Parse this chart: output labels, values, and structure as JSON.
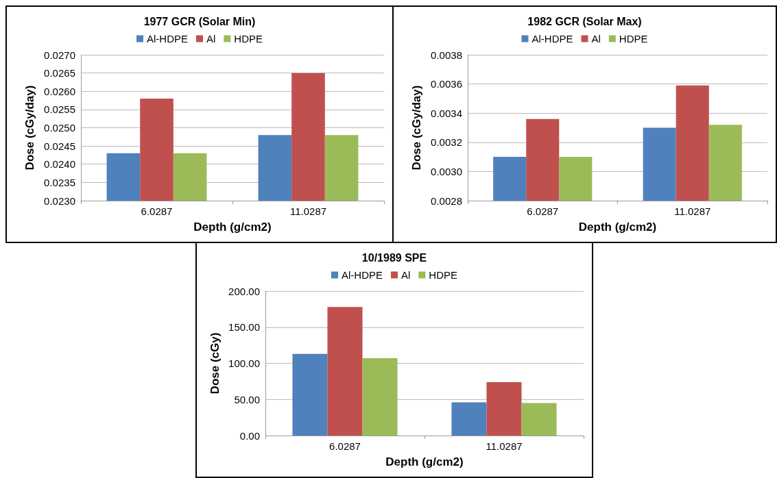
{
  "chart_data": [
    {
      "type": "bar",
      "title": "1977 GCR (Solar Min)",
      "xlabel": "Depth (g/cm2)",
      "ylabel": "Dose (cGy/day)",
      "categories": [
        "6.0287",
        "11.0287"
      ],
      "series": [
        {
          "name": "Al-HDPE",
          "color": "#4f81bd",
          "values": [
            0.0243,
            0.0248
          ]
        },
        {
          "name": "Al",
          "color": "#c0504d",
          "values": [
            0.0258,
            0.0265
          ]
        },
        {
          "name": "HDPE",
          "color": "#9bbb59",
          "values": [
            0.0243,
            0.0248
          ]
        }
      ],
      "ylim": [
        0.023,
        0.027
      ],
      "yticks": [
        {
          "value": 0.023,
          "label": "0.0230"
        },
        {
          "value": 0.0235,
          "label": "0.0235"
        },
        {
          "value": 0.024,
          "label": "0.0240"
        },
        {
          "value": 0.0245,
          "label": "0.0245"
        },
        {
          "value": 0.025,
          "label": "0.0250"
        },
        {
          "value": 0.0255,
          "label": "0.0255"
        },
        {
          "value": 0.026,
          "label": "0.0260"
        },
        {
          "value": 0.0265,
          "label": "0.0265"
        },
        {
          "value": 0.027,
          "label": "0.0270"
        }
      ],
      "grid": "y",
      "legend": "top"
    },
    {
      "type": "bar",
      "title": "1982 GCR (Solar Max)",
      "xlabel": "Depth (g/cm2)",
      "ylabel": "Dose (cGy/day)",
      "categories": [
        "6.0287",
        "11.0287"
      ],
      "series": [
        {
          "name": "Al-HDPE",
          "color": "#4f81bd",
          "values": [
            0.0031,
            0.0033
          ]
        },
        {
          "name": "Al",
          "color": "#c0504d",
          "values": [
            0.00336,
            0.00359
          ]
        },
        {
          "name": "HDPE",
          "color": "#9bbb59",
          "values": [
            0.0031,
            0.00332
          ]
        }
      ],
      "ylim": [
        0.0028,
        0.0038
      ],
      "yticks": [
        {
          "value": 0.0028,
          "label": "0.0028"
        },
        {
          "value": 0.003,
          "label": "0.0030"
        },
        {
          "value": 0.0032,
          "label": "0.0032"
        },
        {
          "value": 0.0034,
          "label": "0.0034"
        },
        {
          "value": 0.0036,
          "label": "0.0036"
        },
        {
          "value": 0.0038,
          "label": "0.0038"
        }
      ],
      "grid": "y",
      "legend": "top"
    },
    {
      "type": "bar",
      "title": "10/1989 SPE",
      "xlabel": "Depth (g/cm2)",
      "ylabel": "Dose (cGy)",
      "categories": [
        "6.0287",
        "11.0287"
      ],
      "series": [
        {
          "name": "Al-HDPE",
          "color": "#4f81bd",
          "values": [
            113,
            46
          ]
        },
        {
          "name": "Al",
          "color": "#c0504d",
          "values": [
            178,
            74
          ]
        },
        {
          "name": "HDPE",
          "color": "#9bbb59",
          "values": [
            107,
            45
          ]
        }
      ],
      "ylim": [
        0,
        200
      ],
      "yticks": [
        {
          "value": 0,
          "label": "0.00"
        },
        {
          "value": 50,
          "label": "50.00"
        },
        {
          "value": 100,
          "label": "100.00"
        },
        {
          "value": 150,
          "label": "150.00"
        },
        {
          "value": 200,
          "label": "200.00"
        }
      ],
      "grid": "y",
      "legend": "top"
    }
  ]
}
